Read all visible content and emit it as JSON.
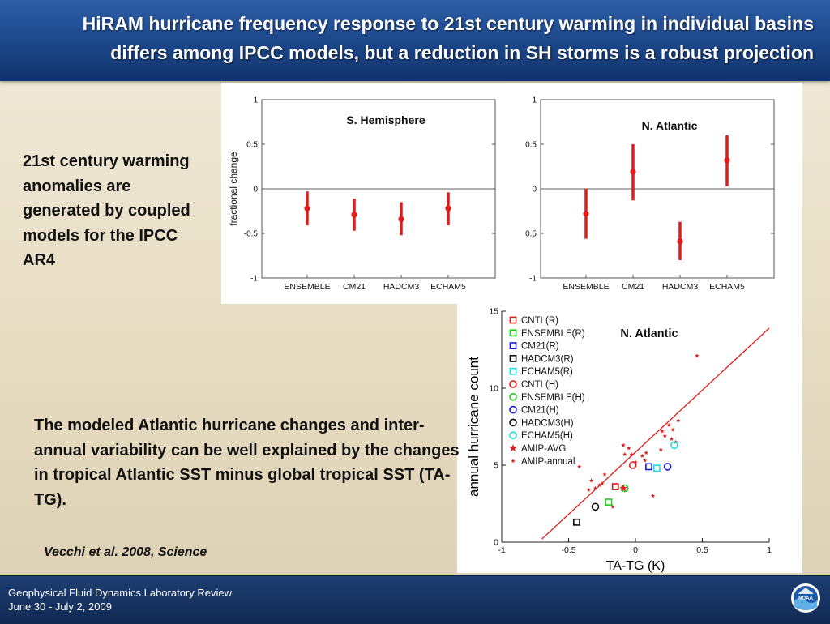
{
  "header": {
    "title_line1": "HiRAM hurricane frequency response to 21st century warming in individual basins",
    "title_line2": "differs among IPCC models, but a reduction in SH storms is a robust projection"
  },
  "intro_text": "21st century warming anomalies are generated by coupled models for the IPCC AR4",
  "explain_text": "The modeled Atlantic hurricane changes and inter-annual variability can be well explained by the changes in tropical Atlantic SST minus global tropical SST (TA-TG).",
  "citation": "Vecchi et al. 2008, Science",
  "footer": {
    "line1": "Geophysical Fluid Dynamics Laboratory Review",
    "line2": "June 30 - July 2, 2009"
  },
  "logo": {
    "name": "noaa-logo",
    "text": "NOAA"
  },
  "colors": {
    "accent": "#e01b1b",
    "header": "#1e4a8e"
  },
  "chart_data": [
    {
      "type": "errorbar",
      "title": "S. Hemisphere",
      "ylabel": "fractional change",
      "ylim": [
        -1,
        1
      ],
      "yticks": [
        "1",
        "0.5",
        "0",
        "-0.5",
        "-1"
      ],
      "categories": [
        "ENSEMBLE",
        "CM21",
        "HADCM3",
        "ECHAM5"
      ],
      "values": [
        -0.22,
        -0.29,
        -0.34,
        -0.22
      ],
      "lower": [
        -0.41,
        -0.47,
        -0.52,
        -0.41
      ],
      "upper": [
        -0.03,
        -0.11,
        -0.15,
        -0.04
      ],
      "zero_line": true,
      "grid": false
    },
    {
      "type": "errorbar",
      "title": "N. Atlantic",
      "ylim": [
        -1,
        1
      ],
      "yticks": [
        "1",
        "0.5",
        "0",
        "0.5",
        "-1"
      ],
      "categories": [
        "ENSEMBLE",
        "CM21",
        "HADCM3",
        "ECHAM5"
      ],
      "values": [
        -0.28,
        0.19,
        -0.59,
        0.32
      ],
      "lower": [
        -0.56,
        -0.13,
        -0.8,
        0.03
      ],
      "upper": [
        0.0,
        0.5,
        -0.37,
        0.6
      ],
      "zero_line": true,
      "grid": false
    },
    {
      "type": "scatter",
      "title": "N. Atlantic",
      "xlabel": "TA-TG (K)",
      "ylabel": "annual hurricane count",
      "xlim": [
        -1,
        1
      ],
      "ylim": [
        0,
        15
      ],
      "xticks": [
        "-1",
        "-0.5",
        "0",
        "0.5",
        "1"
      ],
      "yticks": [
        "15",
        "10",
        "5",
        "0"
      ],
      "legend_position": "top-left",
      "fit_line": {
        "x": [
          -0.7,
          1.0
        ],
        "y": [
          0.2,
          13.9
        ],
        "color": "#e01b1b"
      },
      "series": [
        {
          "name": "CNTL(R)",
          "marker": "square",
          "color": "#e01b1b",
          "x": [
            -0.15
          ],
          "y": [
            3.6
          ]
        },
        {
          "name": "ENSEMBLE(R)",
          "marker": "square",
          "color": "#22cc22",
          "x": [
            -0.2
          ],
          "y": [
            2.6
          ]
        },
        {
          "name": "CM21(R)",
          "marker": "square",
          "color": "#1a1ad8",
          "x": [
            0.1
          ],
          "y": [
            4.9
          ]
        },
        {
          "name": "HADCM3(R)",
          "marker": "square",
          "color": "#111111",
          "x": [
            -0.44
          ],
          "y": [
            1.3
          ]
        },
        {
          "name": "ECHAM5(R)",
          "marker": "square",
          "color": "#22dddd",
          "x": [
            0.16
          ],
          "y": [
            4.8
          ]
        },
        {
          "name": "CNTL(H)",
          "marker": "circle",
          "color": "#e01b1b",
          "x": [
            -0.02
          ],
          "y": [
            5.0
          ]
        },
        {
          "name": "ENSEMBLE(H)",
          "marker": "circle",
          "color": "#22cc22",
          "x": [
            -0.08
          ],
          "y": [
            3.5
          ]
        },
        {
          "name": "CM21(H)",
          "marker": "circle",
          "color": "#1a1ad8",
          "x": [
            0.24
          ],
          "y": [
            4.9
          ]
        },
        {
          "name": "HADCM3(H)",
          "marker": "circle",
          "color": "#111111",
          "x": [
            -0.3
          ],
          "y": [
            2.3
          ]
        },
        {
          "name": "ECHAM5(H)",
          "marker": "circle",
          "color": "#22dddd",
          "x": [
            0.29
          ],
          "y": [
            6.3
          ]
        },
        {
          "name": "AMIP-AVG",
          "marker": "star-large",
          "color": "#e01b1b",
          "x": [
            -0.09
          ],
          "y": [
            3.5
          ]
        },
        {
          "name": "AMIP-annual",
          "marker": "star-small",
          "color": "#e01b1b",
          "x": [
            -0.42,
            -0.3,
            -0.25,
            -0.27,
            -0.33,
            -0.17,
            -0.09,
            -0.08,
            -0.05,
            -0.03,
            0.0,
            0.05,
            0.13,
            0.19,
            0.25,
            0.27,
            0.28,
            0.3,
            0.32,
            0.46,
            -0.35,
            0.07,
            0.2,
            0.22,
            -0.23,
            0.08
          ],
          "y": [
            4.9,
            3.5,
            3.8,
            3.7,
            4.0,
            2.3,
            6.3,
            5.7,
            6.1,
            5.7,
            5.2,
            5.6,
            3.0,
            6.0,
            7.6,
            6.7,
            7.3,
            6.5,
            7.9,
            12.1,
            3.4,
            5.3,
            7.2,
            6.9,
            4.4,
            5.8
          ]
        }
      ]
    }
  ]
}
